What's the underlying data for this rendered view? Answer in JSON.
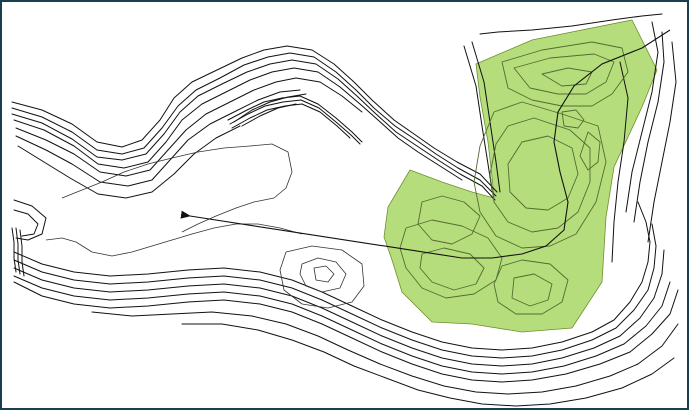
{
  "map": {
    "zone_fill": "#b5dd7c",
    "zone_stroke": "#7a9a3a",
    "contour_color": "#111111",
    "frame_color": "#17404f",
    "background": "#ffffff",
    "elements": {
      "highlight_zone": "green-shaded-area",
      "direction_arrow": "arrow-pointing-left",
      "ridge_feature": "dark-ridge-band"
    }
  }
}
